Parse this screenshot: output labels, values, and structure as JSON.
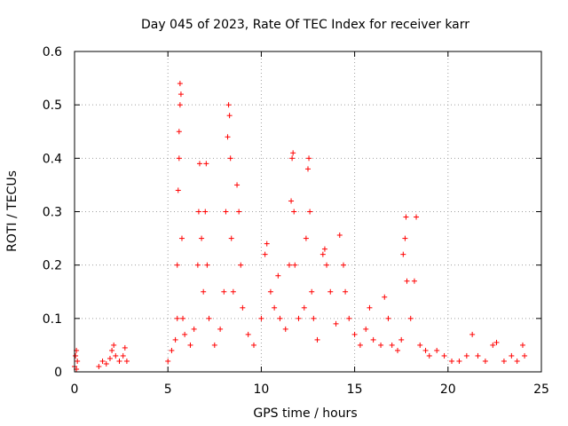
{
  "chart_data": {
    "type": "scatter",
    "title": "Day 045 of 2023, Rate Of TEC Index for receiver karr",
    "xlabel": "GPS time / hours",
    "ylabel": "ROTI / TECUs",
    "xlim": [
      0,
      25
    ],
    "ylim": [
      0,
      0.6
    ],
    "xticks": [
      0,
      5,
      10,
      15,
      20,
      25
    ],
    "yticks": [
      0,
      0.1,
      0.2,
      0.3,
      0.4,
      0.5,
      0.6
    ],
    "xtick_labels": [
      "0",
      "5",
      "10",
      "15",
      "20",
      "25"
    ],
    "ytick_labels": [
      "0",
      "0.1",
      "0.2",
      "0.3",
      "0.4",
      "0.5",
      "0.6"
    ],
    "grid": true,
    "marker": "+",
    "color": "#ff0000",
    "series": [
      {
        "points": [
          [
            0.0,
            0.01
          ],
          [
            0.05,
            0.03
          ],
          [
            0.1,
            0.04
          ],
          [
            0.1,
            0.005
          ],
          [
            0.15,
            0.02
          ],
          [
            1.3,
            0.01
          ],
          [
            1.5,
            0.02
          ],
          [
            1.7,
            0.015
          ],
          [
            1.9,
            0.025
          ],
          [
            2.0,
            0.04
          ],
          [
            2.1,
            0.05
          ],
          [
            2.2,
            0.03
          ],
          [
            2.4,
            0.02
          ],
          [
            2.6,
            0.03
          ],
          [
            2.7,
            0.045
          ],
          [
            2.8,
            0.02
          ],
          [
            5.0,
            0.02
          ],
          [
            5.2,
            0.04
          ],
          [
            5.4,
            0.06
          ],
          [
            5.5,
            0.1
          ],
          [
            5.5,
            0.2
          ],
          [
            5.55,
            0.34
          ],
          [
            5.6,
            0.4
          ],
          [
            5.6,
            0.45
          ],
          [
            5.65,
            0.5
          ],
          [
            5.65,
            0.54
          ],
          [
            5.7,
            0.52
          ],
          [
            5.75,
            0.25
          ],
          [
            5.8,
            0.1
          ],
          [
            5.9,
            0.07
          ],
          [
            6.2,
            0.05
          ],
          [
            6.4,
            0.08
          ],
          [
            6.6,
            0.2
          ],
          [
            6.65,
            0.3
          ],
          [
            6.7,
            0.39
          ],
          [
            6.8,
            0.25
          ],
          [
            6.9,
            0.15
          ],
          [
            7.0,
            0.3
          ],
          [
            7.05,
            0.39
          ],
          [
            7.1,
            0.2
          ],
          [
            7.2,
            0.1
          ],
          [
            7.5,
            0.05
          ],
          [
            7.8,
            0.08
          ],
          [
            8.0,
            0.15
          ],
          [
            8.1,
            0.3
          ],
          [
            8.2,
            0.44
          ],
          [
            8.25,
            0.5
          ],
          [
            8.3,
            0.48
          ],
          [
            8.35,
            0.4
          ],
          [
            8.4,
            0.25
          ],
          [
            8.5,
            0.15
          ],
          [
            8.7,
            0.35
          ],
          [
            8.8,
            0.3
          ],
          [
            8.9,
            0.2
          ],
          [
            9.0,
            0.12
          ],
          [
            9.3,
            0.07
          ],
          [
            9.6,
            0.05
          ],
          [
            10.0,
            0.1
          ],
          [
            10.2,
            0.22
          ],
          [
            10.3,
            0.24
          ],
          [
            10.5,
            0.15
          ],
          [
            10.7,
            0.12
          ],
          [
            10.9,
            0.18
          ],
          [
            11.0,
            0.1
          ],
          [
            11.3,
            0.08
          ],
          [
            11.5,
            0.2
          ],
          [
            11.6,
            0.32
          ],
          [
            11.65,
            0.4
          ],
          [
            11.7,
            0.41
          ],
          [
            11.75,
            0.3
          ],
          [
            11.8,
            0.2
          ],
          [
            12.0,
            0.1
          ],
          [
            12.3,
            0.12
          ],
          [
            12.4,
            0.25
          ],
          [
            12.5,
            0.38
          ],
          [
            12.55,
            0.4
          ],
          [
            12.6,
            0.3
          ],
          [
            12.7,
            0.15
          ],
          [
            12.8,
            0.1
          ],
          [
            13.0,
            0.06
          ],
          [
            13.3,
            0.22
          ],
          [
            13.4,
            0.23
          ],
          [
            13.5,
            0.2
          ],
          [
            13.7,
            0.15
          ],
          [
            14.0,
            0.09
          ],
          [
            14.2,
            0.256
          ],
          [
            14.4,
            0.2
          ],
          [
            14.5,
            0.15
          ],
          [
            14.7,
            0.1
          ],
          [
            15.0,
            0.07
          ],
          [
            15.3,
            0.05
          ],
          [
            15.6,
            0.08
          ],
          [
            15.8,
            0.12
          ],
          [
            16.0,
            0.06
          ],
          [
            16.4,
            0.05
          ],
          [
            16.6,
            0.14
          ],
          [
            16.8,
            0.1
          ],
          [
            17.0,
            0.05
          ],
          [
            17.3,
            0.04
          ],
          [
            17.5,
            0.06
          ],
          [
            17.6,
            0.22
          ],
          [
            17.7,
            0.25
          ],
          [
            17.75,
            0.29
          ],
          [
            17.8,
            0.17
          ],
          [
            18.0,
            0.1
          ],
          [
            18.2,
            0.17
          ],
          [
            18.3,
            0.29
          ],
          [
            18.5,
            0.05
          ],
          [
            18.8,
            0.04
          ],
          [
            19.0,
            0.03
          ],
          [
            19.4,
            0.04
          ],
          [
            19.8,
            0.03
          ],
          [
            20.2,
            0.02
          ],
          [
            20.6,
            0.02
          ],
          [
            21.0,
            0.03
          ],
          [
            21.3,
            0.07
          ],
          [
            21.6,
            0.03
          ],
          [
            22.0,
            0.02
          ],
          [
            22.4,
            0.05
          ],
          [
            22.6,
            0.055
          ],
          [
            23.0,
            0.02
          ],
          [
            23.4,
            0.03
          ],
          [
            23.7,
            0.02
          ],
          [
            24.0,
            0.05
          ],
          [
            24.1,
            0.03
          ]
        ]
      }
    ]
  }
}
